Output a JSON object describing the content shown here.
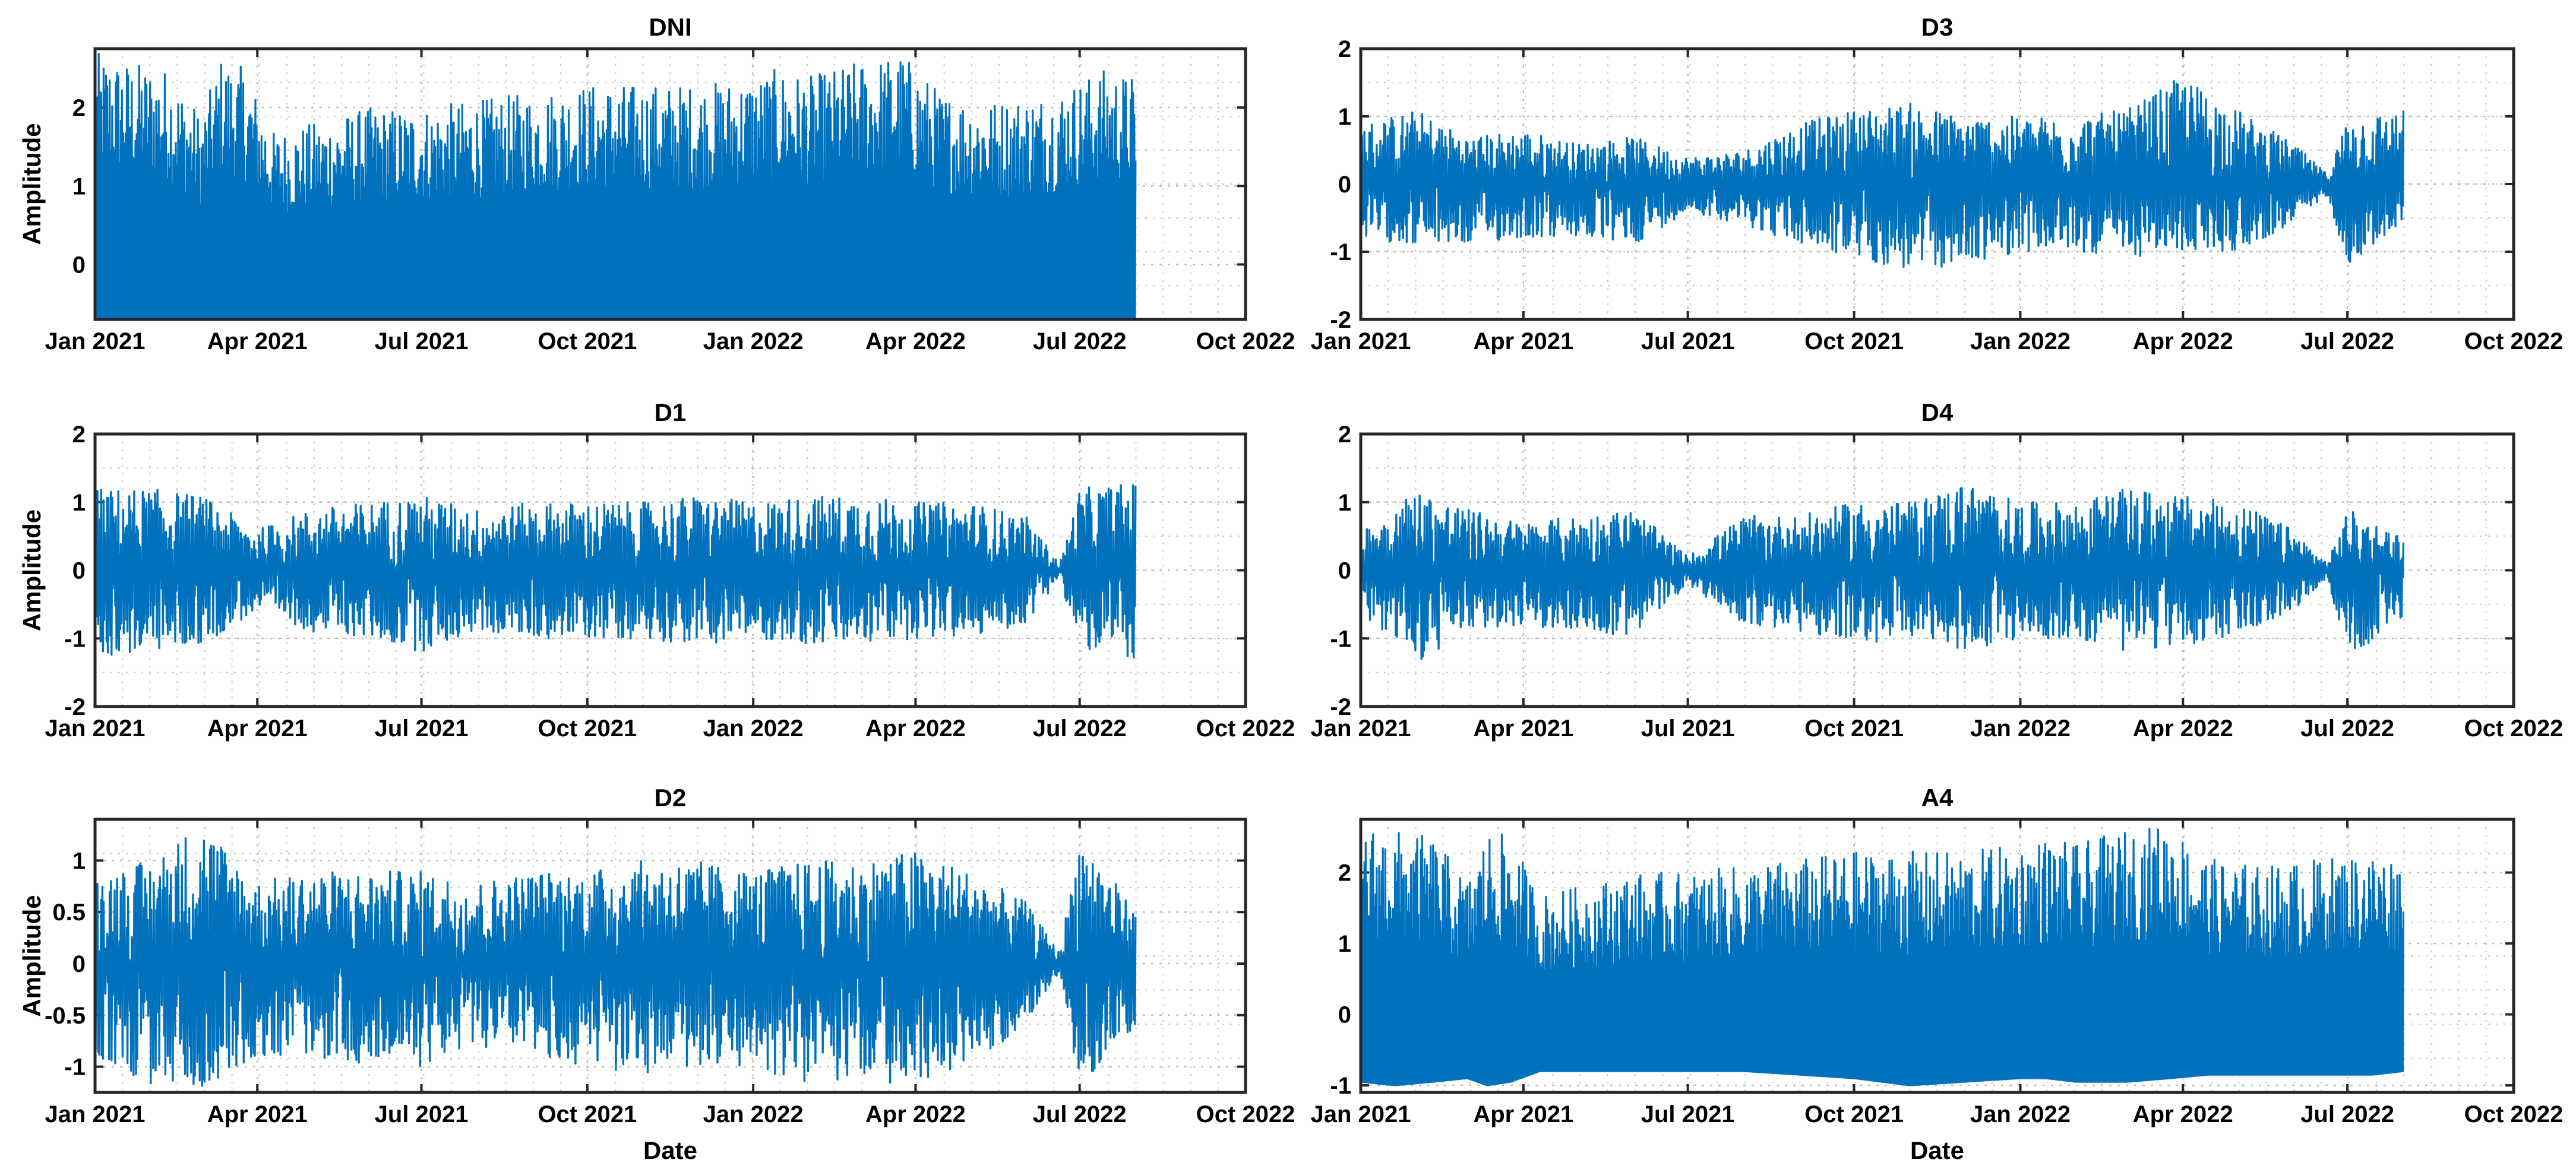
{
  "chart_data": [
    {
      "type": "area",
      "title": "DNI",
      "ylabel": "Amplitude",
      "xlabel": "",
      "xlim": [
        "2021-01-01",
        "2022-10-01"
      ],
      "x_ticks": [
        "Jan 2021",
        "Apr 2021",
        "Jul 2021",
        "Oct 2021",
        "Jan 2022",
        "Apr 2022",
        "Jul 2022",
        "Oct 2022"
      ],
      "ylim": [
        -0.7,
        2.75
      ],
      "y_ticks": [
        "0",
        "1",
        "2"
      ],
      "y_tick_values": [
        0,
        1,
        2
      ],
      "data_end": "2022-08-01",
      "color": "#0072BD",
      "grid": true,
      "envelope": {
        "dates": [
          "2021-01-01",
          "2021-01-20",
          "2021-02-10",
          "2021-03-01",
          "2021-03-12",
          "2021-03-25",
          "2021-04-10",
          "2021-05-01",
          "2021-06-01",
          "2021-07-01",
          "2021-08-01",
          "2021-09-01",
          "2021-10-01",
          "2021-11-01",
          "2021-12-01",
          "2022-01-01",
          "2022-01-15",
          "2022-02-01",
          "2022-03-01",
          "2022-03-25",
          "2022-04-15",
          "2022-05-15",
          "2022-06-15",
          "2022-07-15",
          "2022-08-01"
        ],
        "upper": [
          2.7,
          2.6,
          2.5,
          1.9,
          2.65,
          2.5,
          1.7,
          1.8,
          2.0,
          2.0,
          2.1,
          2.2,
          2.3,
          2.3,
          2.3,
          2.4,
          2.5,
          2.4,
          2.6,
          2.7,
          2.2,
          2.1,
          2.2,
          2.5,
          2.4
        ],
        "lower": [
          -0.7,
          -0.7,
          -0.7,
          -0.7,
          -0.7,
          -0.7,
          -0.7,
          -0.7,
          -0.7,
          -0.7,
          -0.7,
          -0.7,
          -0.7,
          -0.7,
          -0.7,
          -0.7,
          -0.7,
          -0.7,
          -0.7,
          -0.7,
          -0.7,
          -0.7,
          -0.7,
          -0.7,
          -0.7
        ]
      }
    },
    {
      "type": "line",
      "title": "D3",
      "ylabel": "",
      "xlabel": "",
      "xlim": [
        "2021-01-01",
        "2022-10-01"
      ],
      "x_ticks": [
        "Jan 2021",
        "Apr 2021",
        "Jul 2021",
        "Oct 2021",
        "Jan 2022",
        "Apr 2022",
        "Jul 2022",
        "Oct 2022"
      ],
      "ylim": [
        -2,
        2
      ],
      "y_ticks": [
        "-2",
        "-1",
        "0",
        "1",
        "2"
      ],
      "y_tick_values": [
        -2,
        -1,
        0,
        1,
        2
      ],
      "data_end": "2022-08-01",
      "color": "#0072BD",
      "grid": true,
      "envelope": {
        "dates": [
          "2021-01-01",
          "2021-02-01",
          "2021-03-01",
          "2021-04-01",
          "2021-05-01",
          "2021-06-01",
          "2021-07-01",
          "2021-08-01",
          "2021-09-01",
          "2021-10-01",
          "2021-11-01",
          "2021-12-01",
          "2022-01-01",
          "2022-02-01",
          "2022-03-01",
          "2022-04-01",
          "2022-05-01",
          "2022-06-01",
          "2022-06-20",
          "2022-07-01",
          "2022-08-01"
        ],
        "upper": [
          0.9,
          1.1,
          0.7,
          0.8,
          0.6,
          0.7,
          0.4,
          0.5,
          0.9,
          1.1,
          1.2,
          1.0,
          1.0,
          1.0,
          1.1,
          1.6,
          1.1,
          0.6,
          0.15,
          1.0,
          1.1
        ],
        "lower": [
          -0.8,
          -0.9,
          -0.9,
          -0.8,
          -0.8,
          -0.9,
          -0.4,
          -0.6,
          -0.9,
          -1.1,
          -1.3,
          -1.2,
          -1.0,
          -1.0,
          -1.1,
          -1.0,
          -1.0,
          -0.6,
          -0.15,
          -1.2,
          -0.6
        ]
      }
    },
    {
      "type": "line",
      "title": "D1",
      "ylabel": "Amplitude",
      "xlabel": "",
      "xlim": [
        "2021-01-01",
        "2022-10-01"
      ],
      "x_ticks": [
        "Jan 2021",
        "Apr 2021",
        "Jul 2021",
        "Oct 2021",
        "Jan 2022",
        "Apr 2022",
        "Jul 2022",
        "Oct 2022"
      ],
      "ylim": [
        -2,
        2
      ],
      "y_ticks": [
        "-2",
        "-1",
        "0",
        "1",
        "2"
      ],
      "y_tick_values": [
        -2,
        -1,
        0,
        1,
        2
      ],
      "data_end": "2022-08-01",
      "color": "#0072BD",
      "grid": true,
      "envelope": {
        "dates": [
          "2021-01-01",
          "2021-02-01",
          "2021-03-01",
          "2021-04-01",
          "2021-05-01",
          "2021-06-01",
          "2021-07-01",
          "2021-08-01",
          "2021-09-01",
          "2021-10-01",
          "2021-11-01",
          "2021-12-01",
          "2022-01-01",
          "2022-02-01",
          "2022-03-01",
          "2022-04-01",
          "2022-05-01",
          "2022-06-01",
          "2022-06-20",
          "2022-07-01",
          "2022-08-01"
        ],
        "upper": [
          1.2,
          1.2,
          1.1,
          0.6,
          0.9,
          1.0,
          1.1,
          0.9,
          1.0,
          1.0,
          1.0,
          1.1,
          1.0,
          1.1,
          1.1,
          1.0,
          1.0,
          0.8,
          0.1,
          1.2,
          1.3
        ],
        "lower": [
          -1.3,
          -1.2,
          -1.1,
          -0.6,
          -0.9,
          -1.0,
          -1.2,
          -0.9,
          -1.0,
          -1.0,
          -1.0,
          -1.1,
          -1.0,
          -1.1,
          -1.1,
          -1.0,
          -1.0,
          -0.8,
          -0.1,
          -1.2,
          -1.3
        ]
      }
    },
    {
      "type": "line",
      "title": "D4",
      "ylabel": "",
      "xlabel": "",
      "xlim": [
        "2021-01-01",
        "2022-10-01"
      ],
      "x_ticks": [
        "Jan 2021",
        "Apr 2021",
        "Jul 2021",
        "Oct 2021",
        "Jan 2022",
        "Apr 2022",
        "Jul 2022",
        "Oct 2022"
      ],
      "ylim": [
        -2,
        2
      ],
      "y_ticks": [
        "-2",
        "-1",
        "0",
        "1",
        "2"
      ],
      "y_tick_values": [
        -2,
        -1,
        0,
        1,
        2
      ],
      "data_end": "2022-08-01",
      "color": "#0072BD",
      "grid": true,
      "envelope": {
        "dates": [
          "2021-01-01",
          "2021-02-01",
          "2021-03-01",
          "2021-04-01",
          "2021-05-01",
          "2021-06-01",
          "2021-07-01",
          "2021-08-01",
          "2021-09-01",
          "2021-10-01",
          "2021-11-01",
          "2021-12-01",
          "2022-01-01",
          "2022-02-01",
          "2022-03-01",
          "2022-04-01",
          "2022-05-01",
          "2022-06-01",
          "2022-06-20",
          "2022-07-01",
          "2022-08-01"
        ],
        "upper": [
          0.6,
          1.2,
          0.9,
          0.7,
          0.8,
          0.9,
          0.2,
          0.8,
          0.8,
          1.0,
          1.0,
          1.3,
          1.0,
          1.0,
          1.2,
          1.1,
          1.0,
          0.6,
          0.1,
          0.9,
          0.5
        ],
        "lower": [
          -0.6,
          -1.4,
          -0.9,
          -0.8,
          -0.9,
          -1.0,
          -0.2,
          -0.8,
          -0.9,
          -1.1,
          -1.0,
          -1.2,
          -1.0,
          -1.0,
          -1.2,
          -1.1,
          -1.0,
          -0.6,
          -0.1,
          -1.3,
          -0.7
        ]
      }
    },
    {
      "type": "line",
      "title": "D2",
      "ylabel": "Amplitude",
      "xlabel": "Date",
      "xlim": [
        "2021-01-01",
        "2022-10-01"
      ],
      "x_ticks": [
        "Jan 2021",
        "Apr 2021",
        "Jul 2021",
        "Oct 2021",
        "Jan 2022",
        "Apr 2022",
        "Jul 2022",
        "Oct 2022"
      ],
      "ylim": [
        -1.25,
        1.4
      ],
      "y_ticks": [
        "-1",
        "-0.5",
        "0",
        "0.5",
        "1"
      ],
      "y_tick_values": [
        -1,
        -0.5,
        0,
        0.5,
        1
      ],
      "data_end": "2022-08-01",
      "color": "#0072BD",
      "grid": true,
      "envelope": {
        "dates": [
          "2021-01-01",
          "2021-02-01",
          "2021-03-01",
          "2021-04-01",
          "2021-05-01",
          "2021-06-01",
          "2021-07-01",
          "2021-08-01",
          "2021-09-01",
          "2021-10-01",
          "2021-11-01",
          "2021-12-01",
          "2022-01-01",
          "2022-02-01",
          "2022-03-01",
          "2022-04-01",
          "2022-05-01",
          "2022-06-01",
          "2022-06-20",
          "2022-07-01",
          "2022-08-01"
        ],
        "upper": [
          0.9,
          1.0,
          1.4,
          0.8,
          0.9,
          0.9,
          0.9,
          0.8,
          0.9,
          0.9,
          1.0,
          1.0,
          0.9,
          1.0,
          1.0,
          1.1,
          0.9,
          0.6,
          0.1,
          1.3,
          0.5
        ],
        "lower": [
          -0.9,
          -1.2,
          -1.2,
          -0.9,
          -0.9,
          -1.0,
          -1.0,
          -0.8,
          -0.9,
          -1.0,
          -1.1,
          -1.0,
          -1.0,
          -1.2,
          -1.1,
          -1.2,
          -1.0,
          -0.6,
          -0.1,
          -1.2,
          -0.6
        ]
      }
    },
    {
      "type": "area",
      "title": "A4",
      "ylabel": "",
      "xlabel": "Date",
      "xlim": [
        "2021-01-01",
        "2022-10-01"
      ],
      "x_ticks": [
        "Jan 2021",
        "Apr 2021",
        "Jul 2021",
        "Oct 2021",
        "Jan 2022",
        "Apr 2022",
        "Jul 2022",
        "Oct 2022"
      ],
      "ylim": [
        -1.1,
        2.75
      ],
      "y_ticks": [
        "-1",
        "0",
        "1",
        "2"
      ],
      "y_tick_values": [
        -1,
        0,
        1,
        2
      ],
      "data_end": "2022-08-01",
      "color": "#0072BD",
      "grid": true,
      "envelope": {
        "dates": [
          "2021-01-01",
          "2021-01-20",
          "2021-02-10",
          "2021-03-01",
          "2021-03-12",
          "2021-03-25",
          "2021-04-10",
          "2021-05-01",
          "2021-06-01",
          "2021-07-01",
          "2021-08-01",
          "2021-09-01",
          "2021-10-01",
          "2021-11-01",
          "2021-12-01",
          "2022-01-01",
          "2022-01-15",
          "2022-02-01",
          "2022-03-01",
          "2022-03-25",
          "2022-04-15",
          "2022-05-15",
          "2022-06-15",
          "2022-07-15",
          "2022-08-01"
        ],
        "upper": [
          2.7,
          2.6,
          2.5,
          1.9,
          2.6,
          2.5,
          1.7,
          1.8,
          2.0,
          2.0,
          2.1,
          2.2,
          2.3,
          2.3,
          2.3,
          2.4,
          2.5,
          2.4,
          2.6,
          2.7,
          2.2,
          2.1,
          2.2,
          2.3,
          2.2
        ],
        "lower": [
          -0.95,
          -1.0,
          -0.95,
          -0.9,
          -1.0,
          -0.95,
          -0.8,
          -0.8,
          -0.8,
          -0.8,
          -0.8,
          -0.85,
          -0.9,
          -1.0,
          -0.95,
          -0.9,
          -0.9,
          -0.95,
          -0.95,
          -0.9,
          -0.85,
          -0.85,
          -0.85,
          -0.85,
          -0.8
        ]
      }
    }
  ]
}
